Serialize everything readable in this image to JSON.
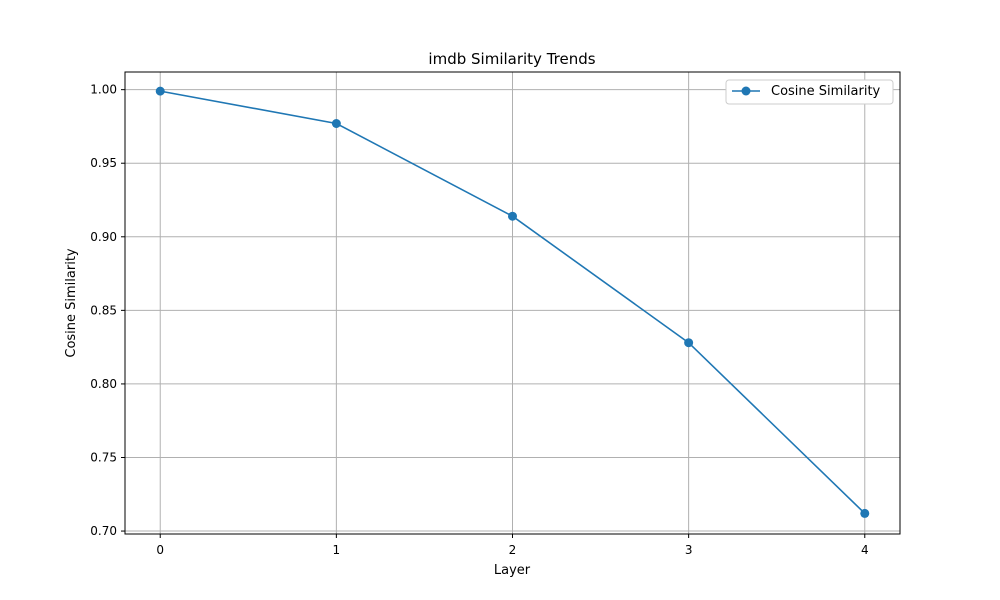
{
  "chart_data": {
    "type": "line",
    "title": "imdb Similarity Trends",
    "xlabel": "Layer",
    "ylabel": "Cosine Similarity",
    "x": [
      0,
      1,
      2,
      3,
      4
    ],
    "x_ticks": [
      "0",
      "1",
      "2",
      "3",
      "4"
    ],
    "y_ticks": [
      "0.70",
      "0.75",
      "0.80",
      "0.85",
      "0.90",
      "0.95",
      "1.00"
    ],
    "xlim": [
      -0.2,
      4.2
    ],
    "ylim": [
      0.698,
      1.012
    ],
    "grid": true,
    "legend": "top-right",
    "series": [
      {
        "name": "Cosine Similarity",
        "color": "#1f77b4",
        "marker": "circle",
        "values": [
          0.999,
          0.977,
          0.914,
          0.828,
          0.712
        ]
      }
    ]
  }
}
